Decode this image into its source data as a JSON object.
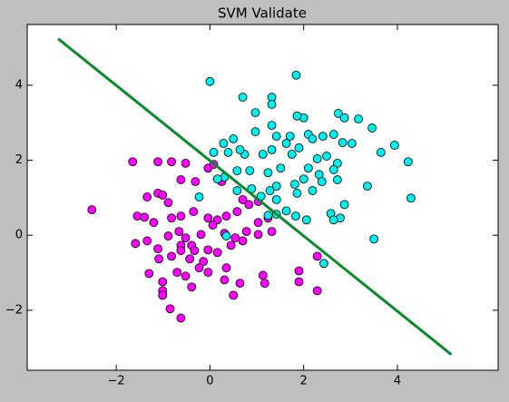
{
  "chart_data": {
    "type": "scatter",
    "title": "SVM Validate",
    "xlim": [
      -3.9,
      6.15
    ],
    "ylim": [
      -3.6,
      5.62
    ],
    "xticks": [
      {
        "value": -2,
        "label": "−2"
      },
      0,
      2,
      4
    ],
    "yticks": [
      {
        "value": -2,
        "label": "−2"
      },
      0,
      2,
      4
    ],
    "series": [
      {
        "color": "#ff00ff",
        "x": [
          -2.52,
          -1.65,
          -1.11,
          -0.82,
          -0.52,
          -0.04,
          0.08,
          -0.62,
          -0.31,
          0.25,
          -1.34,
          -1.11,
          -1.01,
          -0.89,
          -1.55,
          -1.4,
          -1.2,
          -0.82,
          -0.62,
          -0.35,
          -0.04,
          0.16,
          0.35,
          0.58,
          0.83,
          0.7,
          1.03,
          -1.59,
          -1.34,
          -1.11,
          -0.89,
          -0.66,
          -0.52,
          -0.39,
          -0.19,
          0.06,
          0.31,
          0.54,
          0.78,
          1.03,
          1.24,
          -1.09,
          -0.82,
          -0.62,
          -0.43,
          -0.14,
          0.16,
          0.45,
          0.7,
          -1.3,
          -1.01,
          -0.7,
          -0.52,
          -0.23,
          0.35,
          0.31,
          1.13,
          1.17,
          -1.01,
          -0.39,
          0.64,
          -1.01,
          -0.85,
          -0.62,
          -0.04,
          0.5,
          1.9,
          1.9,
          2.29,
          2.29,
          -0.62,
          -0.33,
          1.32,
          1.03,
          -0.04
        ],
        "values": [
          0.68,
          1.96,
          1.96,
          1.96,
          1.92,
          1.79,
          1.89,
          1.48,
          1.43,
          1.43,
          1.02,
          1.12,
          1.07,
          0.87,
          0.51,
          0.48,
          0.34,
          0.46,
          0.51,
          0.63,
          0.46,
          0.41,
          0.51,
          0.63,
          0.82,
          0.95,
          0.9,
          -0.22,
          -0.15,
          -0.36,
          -0.02,
          0.1,
          -0.07,
          -0.27,
          0.02,
          0.27,
          0.05,
          -0.07,
          0.1,
          0.34,
          0.46,
          -0.63,
          -0.56,
          -0.27,
          -0.63,
          -0.7,
          -0.46,
          -0.27,
          -0.15,
          -1.02,
          -1.24,
          -0.99,
          -1.09,
          -0.87,
          -0.87,
          -1.19,
          -1.07,
          -1.28,
          -1.48,
          -1.38,
          -1.28,
          -1.6,
          -1.96,
          -2.21,
          -0.99,
          -1.6,
          -0.95,
          -1.24,
          -1.48,
          -0.56,
          -0.41,
          -0.41,
          0.1,
          0.02,
          -0.39
        ]
      },
      {
        "color": "#00eeee",
        "x": [
          0.0,
          1.84,
          0.7,
          1.32,
          1.32,
          2.0,
          1.86,
          2.74,
          2.87,
          3.17,
          3.46,
          0.97,
          1.32,
          0.5,
          0.29,
          0.39,
          0.97,
          1.42,
          1.71,
          2.1,
          2.41,
          2.64,
          2.83,
          3.03,
          2.19,
          1.9,
          1.75,
          1.63,
          1.32,
          1.13,
          0.74,
          0.64,
          0.08,
          3.65,
          3.94,
          4.23,
          2.49,
          2.72,
          2.29,
          2.1,
          1.51,
          1.24,
          0.85,
          0.58,
          0.31,
          0.16,
          1.42,
          1.81,
          2.0,
          2.33,
          2.64,
          2.72,
          2.39,
          2.19,
          1.86,
          1.42,
          1.28,
          1.09,
          0.89,
          0.58,
          -0.23,
          3.36,
          4.29,
          2.87,
          2.78,
          2.58,
          2.06,
          1.83,
          1.63,
          1.42,
          1.24,
          0.35,
          3.5,
          2.43,
          2.64
        ],
        "values": [
          4.1,
          4.27,
          3.68,
          3.68,
          3.49,
          3.13,
          3.18,
          3.25,
          3.13,
          3.1,
          2.86,
          3.27,
          2.93,
          2.57,
          2.45,
          2.21,
          2.76,
          2.64,
          2.64,
          2.69,
          2.64,
          2.69,
          2.47,
          2.45,
          2.57,
          2.33,
          2.16,
          2.45,
          2.28,
          2.16,
          2.16,
          2.28,
          2.21,
          2.21,
          2.4,
          1.96,
          2.11,
          1.92,
          2.04,
          1.79,
          1.79,
          1.67,
          1.72,
          1.72,
          1.55,
          1.5,
          1.31,
          1.36,
          1.5,
          1.62,
          1.75,
          1.48,
          1.43,
          1.19,
          1.12,
          0.95,
          1.19,
          1.04,
          1.24,
          1.19,
          1.02,
          1.31,
          0.99,
          0.82,
          0.46,
          0.58,
          0.41,
          0.51,
          0.65,
          0.56,
          0.53,
          -0.02,
          -0.1,
          -0.75,
          0.41
        ]
      }
    ],
    "line": {
      "color": "#0a8a2a",
      "x": [
        -3.24,
        5.15
      ],
      "values": [
        5.24,
        -3.18
      ]
    }
  }
}
